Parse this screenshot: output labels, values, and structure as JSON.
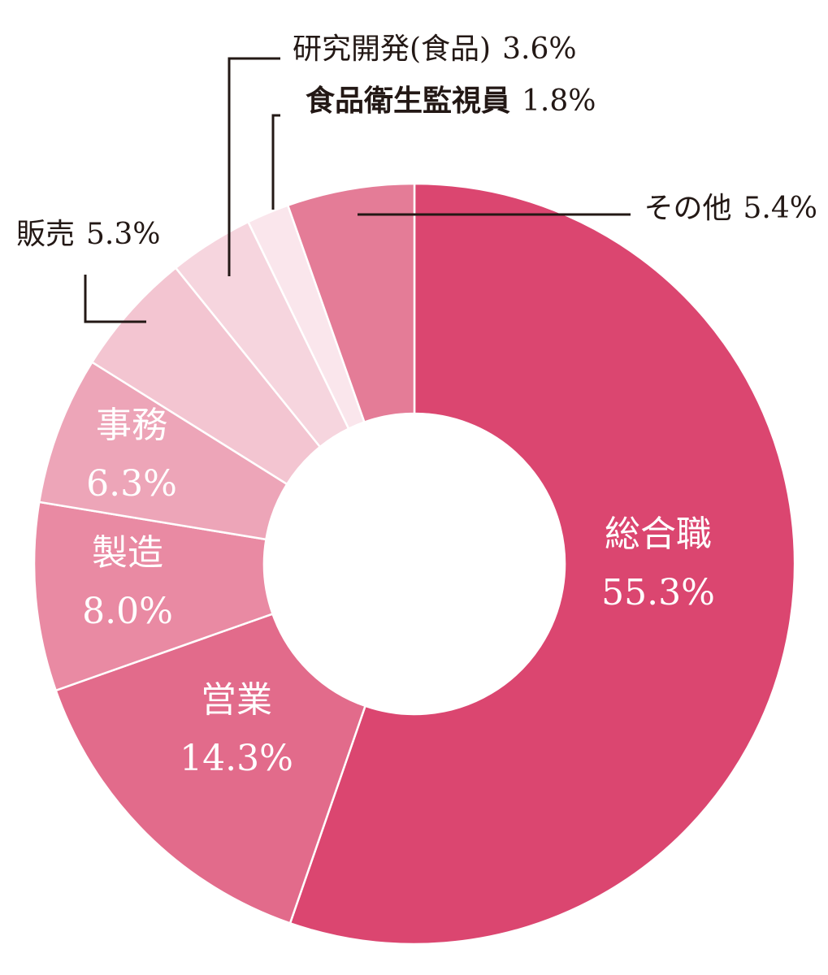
{
  "chart_data": {
    "type": "pie",
    "variant": "donut",
    "start": "top, clockwise",
    "slices": [
      {
        "name": "総合職",
        "value": 55.3,
        "value_label": "55.3%",
        "color": "#db4670",
        "label_position": "inside"
      },
      {
        "name": "営業",
        "value": 14.3,
        "value_label": "14.3%",
        "color": "#e26b8b",
        "label_position": "inside"
      },
      {
        "name": "製造",
        "value": 8.0,
        "value_label": "8.0%",
        "color": "#e98aa3",
        "label_position": "inside"
      },
      {
        "name": "事務",
        "value": 6.3,
        "value_label": "6.3%",
        "color": "#eda5b8",
        "label_position": "inside"
      },
      {
        "name": "販売",
        "value": 5.3,
        "value_label": "5.3%",
        "color": "#f3c5d1",
        "label_position": "outside"
      },
      {
        "name": "研究開発(食品)",
        "value": 3.6,
        "value_label": "3.6%",
        "color": "#f6d5de",
        "label_position": "outside"
      },
      {
        "name": "食品衛生監視員",
        "value": 1.8,
        "value_label": "1.8%",
        "color": "#fae6ec",
        "label_position": "outside"
      },
      {
        "name": "その他",
        "value": 5.4,
        "value_label": "5.4%",
        "color": "#e47c97",
        "label_position": "outside"
      }
    ]
  },
  "colors": {
    "leader_line": "#231815",
    "inside_text": "#ffffff",
    "outside_text": "#231815",
    "separator": "#ffffff"
  }
}
